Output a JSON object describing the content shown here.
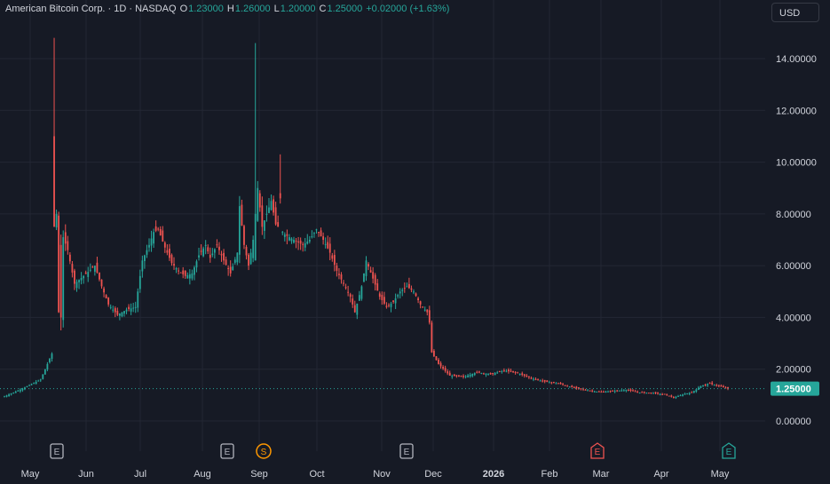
{
  "legend": {
    "symbol": "American Bitcoin Corp. · 1D · NASDAQ",
    "open_label": "O",
    "open": "1.23000",
    "high_label": "H",
    "high": "1.26000",
    "low_label": "L",
    "low": "1.20000",
    "close_label": "C",
    "close": "1.25000",
    "change": "+0.02000 (+1.63%)"
  },
  "currency_button": "USD",
  "colors": {
    "up": "#26a69a",
    "down": "#ef5350",
    "background": "#161a25",
    "grid": "#232734",
    "axis_text": "#d1d4dc"
  },
  "chart_data": {
    "type": "candlestick",
    "y_axis": {
      "min": -0.4,
      "max": 15.2,
      "ticks": [
        "0.00000",
        "2.00000",
        "4.00000",
        "6.00000",
        "8.00000",
        "10.00000",
        "12.00000",
        "14.00000"
      ],
      "side": "right"
    },
    "x_axis": {
      "labels": [
        "May",
        "Jun",
        "Jul",
        "Aug",
        "Sep",
        "Oct",
        "Nov",
        "Dec",
        "2026",
        "Feb",
        "Mar",
        "Apr",
        "May"
      ]
    },
    "last_price": "1.25000",
    "last_price_value": 1.25,
    "grid": true,
    "events": [
      {
        "type": "E",
        "month_index": 0,
        "color": "#b2b5be"
      },
      {
        "type": "E",
        "month_index": 3,
        "color": "#b2b5be"
      },
      {
        "type": "S",
        "month_index": 4,
        "color": "#ff9800"
      },
      {
        "type": "E",
        "month_index": 6,
        "color": "#b2b5be"
      },
      {
        "type": "E",
        "month_index": 9,
        "color": "#ef5350"
      },
      {
        "type": "E",
        "month_index": 12,
        "color": "#26a69a"
      }
    ],
    "anchors": [
      [
        0,
        0.95
      ],
      [
        8,
        1.25
      ],
      [
        16,
        1.6
      ],
      [
        21,
        2.6
      ],
      [
        22,
        7.5
      ],
      [
        23,
        8.0
      ],
      [
        24,
        4.2
      ],
      [
        25,
        4.0
      ],
      [
        26,
        7.1
      ],
      [
        28,
        6.6
      ],
      [
        31,
        5.3
      ],
      [
        35,
        5.6
      ],
      [
        40,
        6.0
      ],
      [
        43,
        5.2
      ],
      [
        46,
        4.5
      ],
      [
        50,
        4.1
      ],
      [
        54,
        4.3
      ],
      [
        58,
        4.4
      ],
      [
        61,
        6.2
      ],
      [
        64,
        6.8
      ],
      [
        66,
        7.3
      ],
      [
        68,
        7.4
      ],
      [
        71,
        6.7
      ],
      [
        74,
        6.1
      ],
      [
        77,
        5.8
      ],
      [
        80,
        5.6
      ],
      [
        83,
        5.7
      ],
      [
        86,
        6.4
      ],
      [
        89,
        6.8
      ],
      [
        91,
        6.3
      ],
      [
        94,
        6.8
      ],
      [
        97,
        6.2
      ],
      [
        100,
        5.7
      ],
      [
        103,
        6.5
      ],
      [
        104,
        8.3
      ],
      [
        106,
        6.8
      ],
      [
        108,
        6.0
      ],
      [
        110,
        7.0
      ],
      [
        112,
        9.0
      ],
      [
        114,
        7.5
      ],
      [
        116,
        8.0
      ],
      [
        118,
        8.5
      ],
      [
        120,
        7.6
      ],
      [
        124,
        7.2
      ],
      [
        128,
        7.0
      ],
      [
        132,
        6.8
      ],
      [
        135,
        7.0
      ],
      [
        138,
        7.4
      ],
      [
        141,
        7.0
      ],
      [
        144,
        6.5
      ],
      [
        147,
        5.8
      ],
      [
        150,
        5.3
      ],
      [
        153,
        4.8
      ],
      [
        155,
        4.2
      ],
      [
        158,
        5.2
      ],
      [
        160,
        6.2
      ],
      [
        163,
        5.5
      ],
      [
        166,
        4.8
      ],
      [
        169,
        4.4
      ],
      [
        172,
        4.6
      ],
      [
        175,
        5.0
      ],
      [
        178,
        5.2
      ],
      [
        181,
        5.0
      ],
      [
        184,
        4.5
      ],
      [
        187,
        4.2
      ],
      [
        188,
        3.8
      ],
      [
        189,
        2.65
      ],
      [
        192,
        2.2
      ],
      [
        197,
        1.75
      ],
      [
        203,
        1.7
      ],
      [
        209,
        1.88
      ],
      [
        215,
        1.8
      ],
      [
        221,
        1.95
      ],
      [
        227,
        1.85
      ],
      [
        233,
        1.65
      ],
      [
        239,
        1.52
      ],
      [
        245,
        1.45
      ],
      [
        251,
        1.3
      ],
      [
        257,
        1.2
      ],
      [
        263,
        1.12
      ],
      [
        269,
        1.15
      ],
      [
        275,
        1.2
      ],
      [
        281,
        1.1
      ],
      [
        287,
        1.08
      ],
      [
        293,
        1.0
      ],
      [
        296,
        0.9
      ],
      [
        301,
        1.05
      ],
      [
        304,
        1.1
      ],
      [
        308,
        1.35
      ],
      [
        312,
        1.45
      ],
      [
        316,
        1.35
      ],
      [
        320,
        1.25
      ]
    ],
    "spikes": [
      {
        "index": 22,
        "open": 11.0,
        "high": 14.8,
        "low": 7.5,
        "close": 7.5
      },
      {
        "index": 25,
        "open": 6.8,
        "high": 7.2,
        "low": 3.5,
        "close": 4.0
      },
      {
        "index": 111,
        "open": 6.2,
        "high": 14.6,
        "low": 6.2,
        "close": 8.0
      },
      {
        "index": 122,
        "open": 8.8,
        "high": 10.3,
        "low": 8.4,
        "close": 8.6
      }
    ]
  }
}
